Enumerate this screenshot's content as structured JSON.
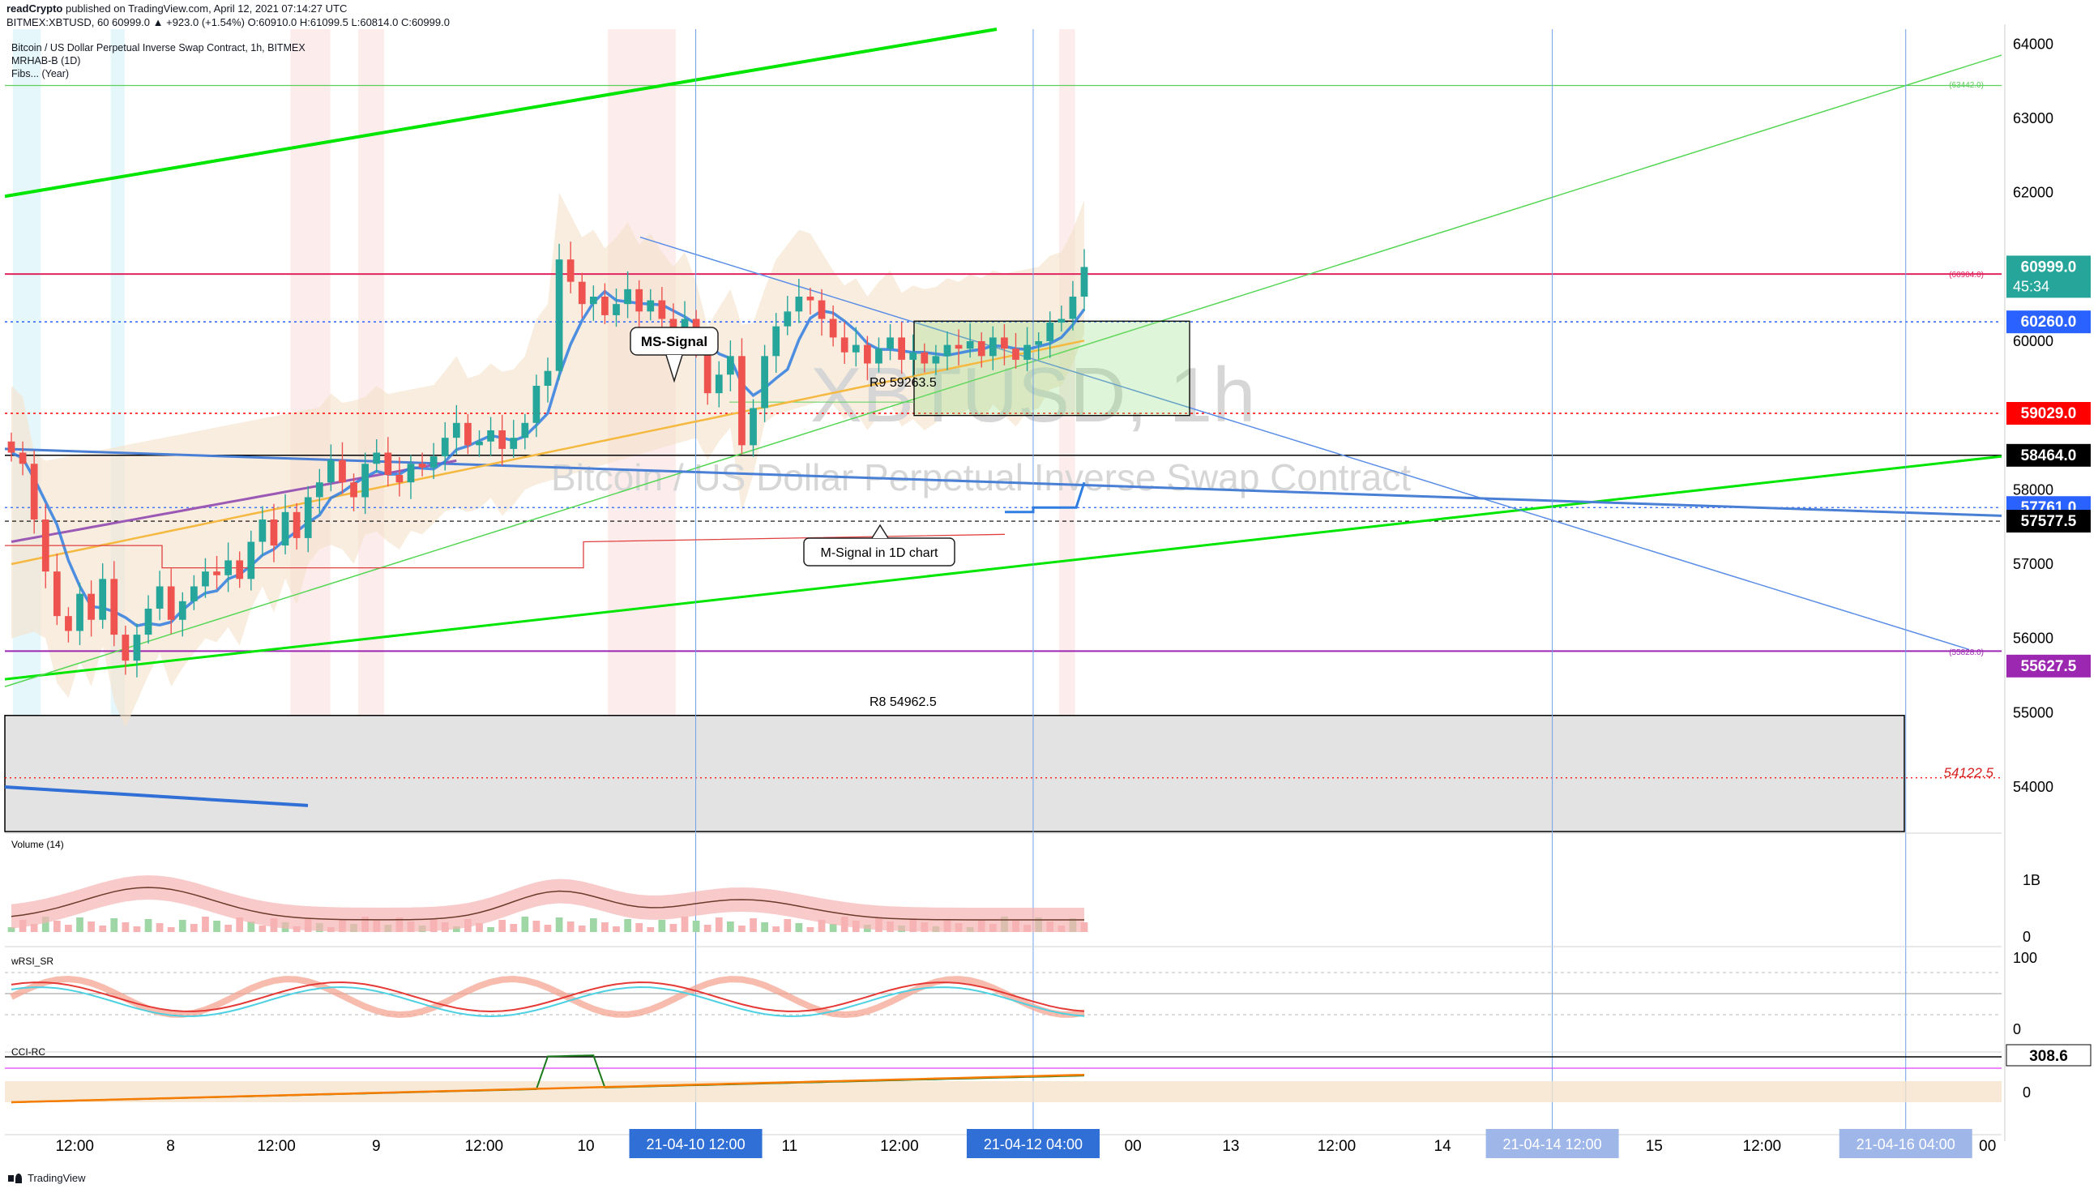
{
  "header": {
    "author": "readCrypto",
    "published_text": " published on TradingView.com, April 12, 2021 07:14:27 UTC",
    "ticker_line": "BITMEX:XBTUSD, 60  60999.0  ▲ +923.0 (+1.54%)  O:60910.0  H:61099.5  L:60814.0  C:60999.0"
  },
  "legend": {
    "title": "Bitcoin / US Dollar Perpetual Inverse Swap Contract, 1h, BITMEX",
    "ind1": "MRHAB-B (1D)",
    "ind2": "Fibs... (Year)"
  },
  "watermark": {
    "symbol": "XBTUSD, 1h",
    "name": "Bitcoin / US Dollar Perpetual Inverse Swap Contract"
  },
  "annotations": {
    "ms_signal": "MS-Signal",
    "m_signal": "M-Signal in 1D chart",
    "r9": "R9 59263.5",
    "r8": "R8 54962.5",
    "fib_63442": "(63442.0)",
    "fib_60904": "(60904.0)",
    "fib_55828": "(55828.0)",
    "level_54122": "54122.5"
  },
  "price_axis": {
    "ticks": [
      "64000",
      "63000",
      "62000",
      "61000",
      "60000",
      "59000",
      "58000",
      "57000",
      "56000",
      "55000",
      "54000"
    ],
    "tick_values": [
      64000,
      63000,
      62000,
      61000,
      60000,
      59000,
      58000,
      57000,
      56000,
      55000,
      54000
    ],
    "labels": [
      {
        "value": 60999.0,
        "text": "60999.0",
        "color": "#26a69a",
        "countdown": "45:34"
      },
      {
        "value": 60260.0,
        "text": "60260.0",
        "color": "#2962ff"
      },
      {
        "value": 59029.0,
        "text": "59029.0",
        "color": "#ff0000"
      },
      {
        "value": 58464.0,
        "text": "58464.0",
        "color": "#000000"
      },
      {
        "value": 57761.0,
        "text": "57761.0",
        "color": "#2962ff"
      },
      {
        "value": 57577.5,
        "text": "57577.5",
        "color": "#000000"
      },
      {
        "value": 55627.5,
        "text": "55627.5",
        "color": "#9c27b0"
      }
    ]
  },
  "time_axis": {
    "ticks": [
      {
        "t": 0.035,
        "text": "12:00"
      },
      {
        "t": 0.083,
        "text": "8"
      },
      {
        "t": 0.136,
        "text": "12:00"
      },
      {
        "t": 0.186,
        "text": "9"
      },
      {
        "t": 0.24,
        "text": "12:00"
      },
      {
        "t": 0.291,
        "text": "10"
      },
      {
        "t": 0.393,
        "text": "11"
      },
      {
        "t": 0.448,
        "text": "12:00"
      },
      {
        "t": 0.565,
        "text": "00"
      },
      {
        "t": 0.614,
        "text": "13"
      },
      {
        "t": 0.667,
        "text": "12:00"
      },
      {
        "t": 0.72,
        "text": "14"
      },
      {
        "t": 0.826,
        "text": "15"
      },
      {
        "t": 0.88,
        "text": "12:00"
      },
      {
        "t": 0.993,
        "text": "00"
      }
    ],
    "highlights": [
      {
        "t": 0.346,
        "text": "21-04-10   12:00"
      },
      {
        "t": 0.515,
        "text": "21-04-12   04:00"
      },
      {
        "t": 0.775,
        "text": "21-04-14   12:00"
      },
      {
        "t": 0.952,
        "text": "21-04-16   04:00"
      }
    ]
  },
  "panes": {
    "volume": {
      "title": "Volume (14)",
      "tick": "1B",
      "zero": "0"
    },
    "wrsi": {
      "title": "wRSI_SR",
      "tick_high": "100",
      "tick_low": "0"
    },
    "cci": {
      "title": "CCI-RC",
      "label": "308.6",
      "zero": "0"
    }
  },
  "colors": {
    "bull": "#26a69a",
    "bear": "#ef5350",
    "ha_bull": "#8fd3c6",
    "ha_bear": "#f4a08a",
    "green_line": "#00e600",
    "axis_blue": "#2962ff"
  },
  "chart_data": {
    "type": "candlestick",
    "symbol": "BITMEX:XBTUSD",
    "interval": "1h",
    "ylim": [
      53400,
      64200
    ],
    "note_series": "approximate hourly closes read from the chart (Apr 7 evening to Apr 12 07:00 UTC)",
    "close_path": [
      58500,
      58350,
      57600,
      56900,
      56300,
      56100,
      56600,
      56250,
      56800,
      56050,
      55700,
      56050,
      56400,
      56700,
      56250,
      56500,
      56700,
      56900,
      56850,
      57050,
      56800,
      57300,
      57600,
      57250,
      57700,
      57350,
      57900,
      58100,
      58400,
      58100,
      57900,
      58350,
      58500,
      58200,
      58100,
      58350,
      58300,
      58450,
      58700,
      58900,
      58600,
      58650,
      58800,
      58550,
      58700,
      58900,
      59400,
      59600,
      61100,
      60800,
      60500,
      60600,
      60350,
      60500,
      60700,
      60400,
      60550,
      60300,
      60100,
      60300,
      59900,
      59300,
      59550,
      59800,
      58600,
      59100,
      59800,
      60200,
      60400,
      60600,
      60550,
      60300,
      60050,
      59850,
      59950,
      59700,
      59900,
      60050,
      59750,
      59850,
      59700,
      59800,
      59950,
      59900,
      60000,
      59800,
      60050,
      59900,
      59750,
      59950,
      60000,
      60250,
      60300,
      60600,
      60999
    ],
    "levels": [
      {
        "label": "R9",
        "value": 59263.5
      },
      {
        "label": "R8",
        "value": 54962.5
      },
      {
        "value": 60904.0
      },
      {
        "value": 63442.0
      },
      {
        "value": 55828.0
      },
      {
        "value": 54122.5
      }
    ]
  }
}
